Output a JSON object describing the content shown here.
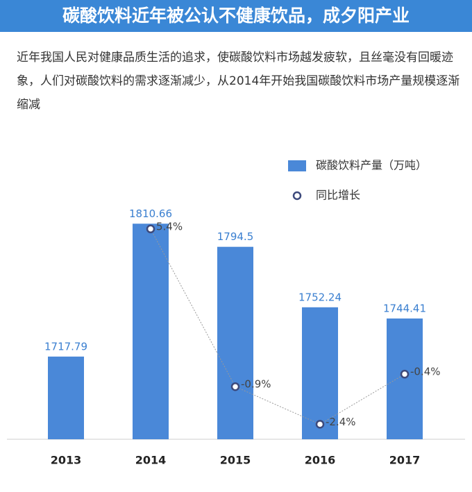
{
  "title": "碳酸饮料近年被公认不健康饮品，成夕阳产业",
  "description": "近年我国人民对健康品质生活的追求，使碳酸饮料市场越发疲软，且丝毫没有回暖迹象，人们对碳酸饮料的需求逐渐减少，从2014年开始我国碳酸饮料市场产量规模逐渐缩减",
  "chart_data": {
    "type": "combo",
    "categories": [
      "2013",
      "2014",
      "2015",
      "2016",
      "2017"
    ],
    "series": [
      {
        "name": "碳酸饮料产量（万吨）",
        "type": "bar",
        "color": "#4a88d8",
        "values": [
          1717.79,
          1810.66,
          1794.5,
          1752.24,
          1744.41
        ]
      },
      {
        "name": "同比增长",
        "type": "line",
        "axis": "y2",
        "color": "#3d4a7c",
        "values": [
          null,
          5.4,
          -0.9,
          -2.4,
          -0.4
        ],
        "value_labels": [
          null,
          "5.4%",
          "-0.9%",
          "-2.4%",
          "-0.4%"
        ]
      }
    ],
    "ylim": [
      1660,
      1870
    ],
    "y2lim": [
      -3,
      9
    ]
  }
}
